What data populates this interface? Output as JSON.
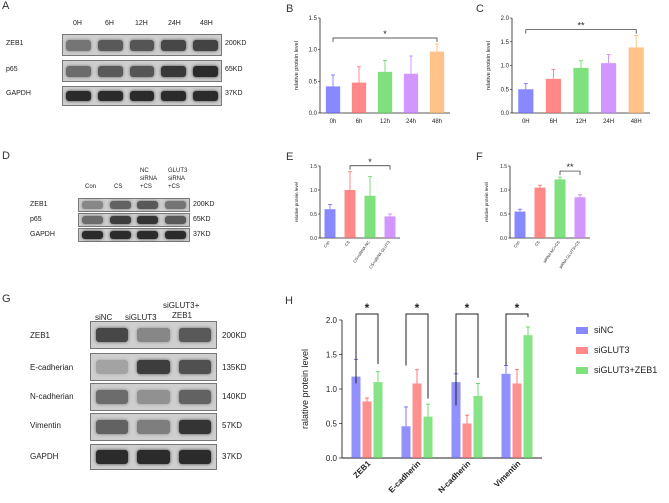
{
  "panels": {
    "A": {
      "label": "A",
      "lanes": [
        "0H",
        "6H",
        "12H",
        "24H",
        "48H"
      ],
      "rows": [
        {
          "name": "ZEB1",
          "kd": "200KD",
          "intensity": [
            0.45,
            0.6,
            0.62,
            0.7,
            0.72
          ]
        },
        {
          "name": "p65",
          "kd": "65KD",
          "intensity": [
            0.5,
            0.6,
            0.62,
            0.78,
            0.85
          ]
        },
        {
          "name": "GAPDH",
          "kd": "37KD",
          "intensity": [
            0.85,
            0.85,
            0.85,
            0.85,
            0.85
          ]
        }
      ]
    },
    "D": {
      "label": "D",
      "lanes": [
        [
          "Con"
        ],
        [
          "CS"
        ],
        [
          "NC",
          "siRNA",
          "+CS"
        ],
        [
          "GLUT3",
          "siRNA",
          "+CS"
        ]
      ],
      "rows": [
        {
          "name": "ZEB1",
          "kd": "200KD",
          "intensity": [
            0.35,
            0.55,
            0.6,
            0.45
          ]
        },
        {
          "name": "p65",
          "kd": "65KD",
          "intensity": [
            0.5,
            0.75,
            0.8,
            0.6
          ]
        },
        {
          "name": "GAPDH",
          "kd": "37KD",
          "intensity": [
            0.85,
            0.85,
            0.85,
            0.85
          ]
        }
      ]
    },
    "G": {
      "label": "G",
      "lanes": [
        [
          "siNC"
        ],
        [
          "siGLUT3"
        ],
        [
          "siGLUT3+",
          "ZEB1"
        ]
      ],
      "rows": [
        {
          "name": "ZEB1",
          "kd": "200KD",
          "intensity": [
            0.7,
            0.35,
            0.6
          ]
        },
        {
          "name": "E-cadherian",
          "kd": "135KD",
          "intensity": [
            0.2,
            0.75,
            0.65
          ]
        },
        {
          "name": "N-cadherian",
          "kd": "140KD",
          "intensity": [
            0.5,
            0.3,
            0.55
          ]
        },
        {
          "name": "Vimentin",
          "kd": "57KD",
          "intensity": [
            0.55,
            0.4,
            0.8
          ]
        },
        {
          "name": "GAPDH",
          "kd": "37KD",
          "intensity": [
            0.85,
            0.85,
            0.85
          ]
        }
      ]
    },
    "E": {
      "label": "E"
    },
    "F": {
      "label": "F"
    }
  },
  "chart_data": [
    {
      "id": "B",
      "label": "B",
      "type": "bar",
      "categories": [
        "0h",
        "6h",
        "12h",
        "24h",
        "48h"
      ],
      "values": [
        0.42,
        0.48,
        0.65,
        0.62,
        0.97
      ],
      "errors": [
        0.18,
        0.25,
        0.18,
        0.28,
        0.12
      ],
      "colors": [
        "#6b6bff",
        "#ff6b6b",
        "#5ed95e",
        "#c77dff",
        "#ffb36b"
      ],
      "ylabel": "relative protein level",
      "ylim": [
        0,
        1.5
      ],
      "yticks": [
        0.0,
        0.5,
        1.0,
        1.5
      ],
      "significance": [
        {
          "from": 0,
          "to": 4,
          "label": "*"
        }
      ]
    },
    {
      "id": "C",
      "label": "C",
      "type": "bar",
      "categories": [
        "0H",
        "6H",
        "12H",
        "24H",
        "48H"
      ],
      "values": [
        0.5,
        0.72,
        0.95,
        1.05,
        1.38
      ],
      "errors": [
        0.12,
        0.2,
        0.15,
        0.18,
        0.25
      ],
      "colors": [
        "#6b6bff",
        "#ff6b6b",
        "#5ed95e",
        "#c77dff",
        "#ffb36b"
      ],
      "ylabel": "relative protein level",
      "ylim": [
        0,
        2.0
      ],
      "yticks": [
        0.0,
        0.5,
        1.0,
        1.5,
        2.0
      ],
      "significance": [
        {
          "from": 0,
          "to": 4,
          "label": "**"
        }
      ]
    },
    {
      "id": "E",
      "label": "E",
      "type": "bar",
      "categories": [
        "Con",
        "CS",
        "CS+siRNA NC",
        "CS+siRNA GLUT3"
      ],
      "values": [
        0.6,
        1.0,
        0.88,
        0.45
      ],
      "errors": [
        0.1,
        0.38,
        0.4,
        0.05
      ],
      "colors": [
        "#6b6bff",
        "#ff6b6b",
        "#5ed95e",
        "#c77dff"
      ],
      "ylabel": "relative protein level",
      "ylim": [
        0,
        1.5
      ],
      "yticks": [
        0.0,
        0.5,
        1.0,
        1.5
      ],
      "significance": [
        {
          "from": 1,
          "to": 3,
          "label": "*"
        }
      ]
    },
    {
      "id": "F",
      "label": "F",
      "type": "bar",
      "categories": [
        "Con",
        "CS",
        "siRNA NC+CS",
        "siRNA GLUT3+CS"
      ],
      "values": [
        0.55,
        1.05,
        1.22,
        0.85
      ],
      "errors": [
        0.05,
        0.05,
        0.05,
        0.05
      ],
      "colors": [
        "#6b6bff",
        "#ff6b6b",
        "#5ed95e",
        "#c77dff"
      ],
      "ylabel": "relative protein level",
      "ylim": [
        0,
        1.5
      ],
      "yticks": [
        0.0,
        0.5,
        1.0,
        1.5
      ],
      "significance": [
        {
          "from": 2,
          "to": 3,
          "label": "**"
        }
      ]
    },
    {
      "id": "H",
      "label": "H",
      "type": "bar",
      "categories": [
        "ZEB1",
        "E-cadherin",
        "N-cadherin",
        "Vimentin"
      ],
      "series": [
        {
          "name": "siNC",
          "color": "#6b6bff",
          "values": [
            1.18,
            0.46,
            1.1,
            1.22
          ],
          "errors": [
            0.25,
            0.28,
            0.12,
            0.12
          ]
        },
        {
          "name": "siGLUT3",
          "color": "#ff6b6b",
          "values": [
            0.82,
            1.08,
            0.5,
            1.08
          ],
          "errors": [
            0.05,
            0.2,
            0.12,
            0.2
          ]
        },
        {
          "name": "siGLUT3+ZEB1",
          "color": "#5ed95e",
          "values": [
            1.1,
            0.6,
            0.9,
            1.78
          ],
          "errors": [
            0.15,
            0.18,
            0.18,
            0.12
          ]
        }
      ],
      "ylabel": "ralative protein level",
      "ylim": [
        0,
        2.0
      ],
      "yticks": [
        0.0,
        0.5,
        1.0,
        1.5,
        2.0
      ],
      "legend": "right",
      "significance": [
        {
          "group": 0,
          "label": "*"
        },
        {
          "group": 1,
          "label": "*"
        },
        {
          "group": 2,
          "label": "*"
        },
        {
          "group": 3,
          "label": "*"
        }
      ]
    }
  ]
}
